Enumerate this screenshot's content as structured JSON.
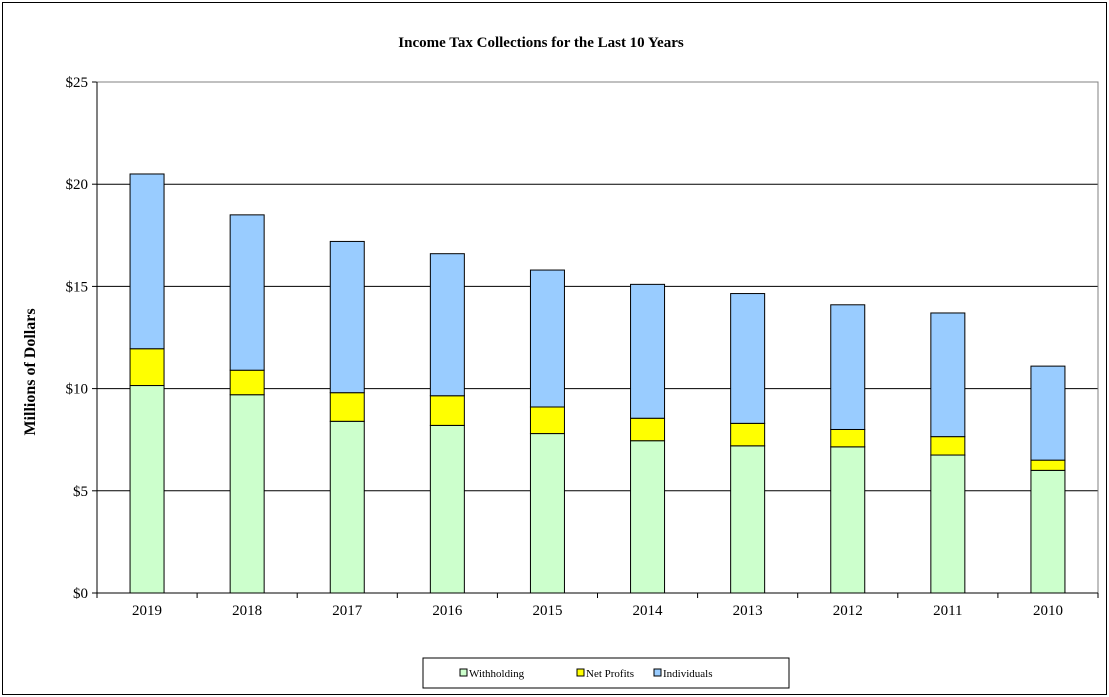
{
  "chart_data": {
    "type": "bar",
    "stacked": true,
    "title": "Income Tax Collections for the Last 10 Years",
    "ylabel": "Millions of Dollars",
    "xlabel": "",
    "ylim": [
      0,
      25
    ],
    "y_ticks": [
      "$0",
      "$5",
      "$10",
      "$15",
      "$20",
      "$25"
    ],
    "y_tick_values": [
      0,
      5,
      10,
      15,
      20,
      25
    ],
    "grid": true,
    "legend_position": "bottom",
    "categories": [
      "2019",
      "2018",
      "2017",
      "2016",
      "2015",
      "2014",
      "2013",
      "2012",
      "2011",
      "2010"
    ],
    "series": [
      {
        "name": "Withholding",
        "color": "#ccffcc",
        "values": [
          10.15,
          9.7,
          8.4,
          8.2,
          7.8,
          7.45,
          7.2,
          7.15,
          6.75,
          6.0
        ]
      },
      {
        "name": "Net Profits",
        "color": "#ffff00",
        "values": [
          1.8,
          1.2,
          1.4,
          1.45,
          1.3,
          1.1,
          1.1,
          0.85,
          0.9,
          0.5
        ]
      },
      {
        "name": "Individuals",
        "color": "#99ccff",
        "values": [
          8.55,
          7.6,
          7.4,
          6.95,
          6.7,
          6.55,
          6.35,
          6.1,
          6.05,
          4.6
        ]
      }
    ]
  }
}
